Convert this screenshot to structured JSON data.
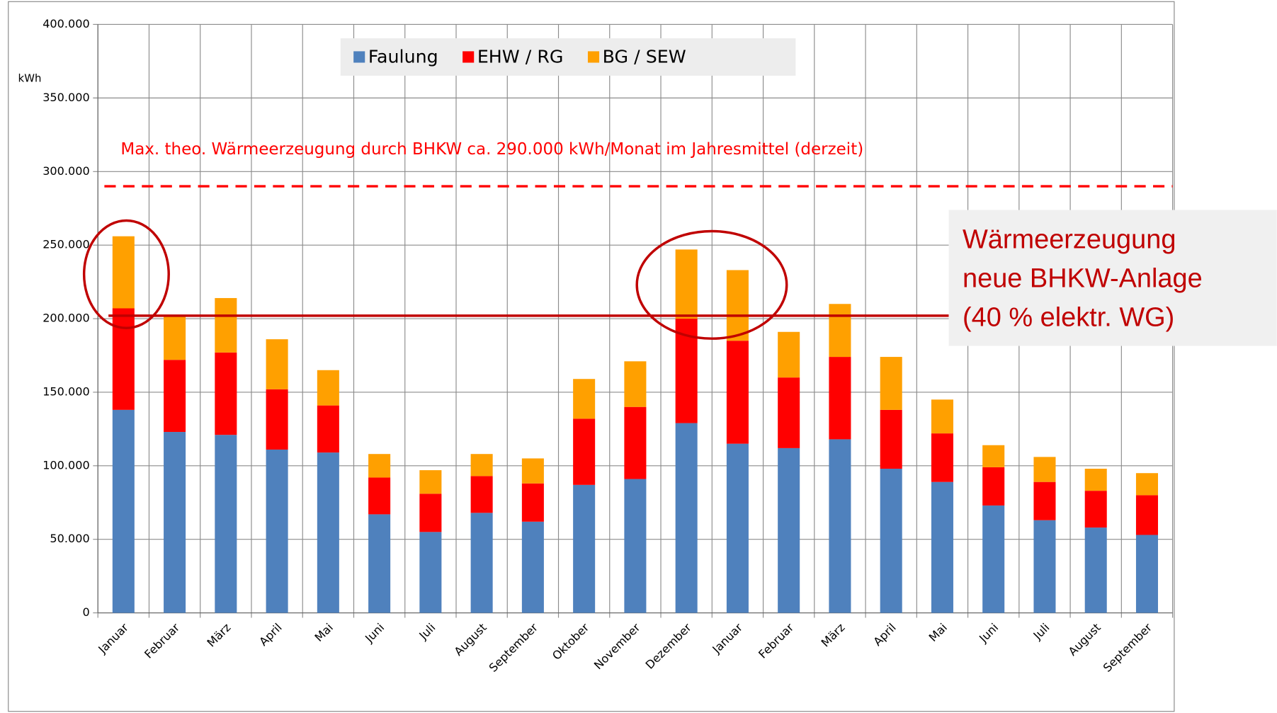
{
  "chart_data": {
    "type": "stacked_bar",
    "y_label": "kWh",
    "categories": [
      "Januar",
      "Februar",
      "März",
      "April",
      "Mai",
      "Juni",
      "Juli",
      "August",
      "September",
      "Oktober",
      "November",
      "Dezember",
      "Januar",
      "Februar",
      "März",
      "April",
      "Mai",
      "Juni",
      "Juli",
      "August",
      "September"
    ],
    "series": [
      {
        "name": "Faulung",
        "color": "#4f81bd",
        "values": [
          138000,
          123000,
          121000,
          111000,
          109000,
          67000,
          55000,
          68000,
          62000,
          87000,
          91000,
          129000,
          115000,
          112000,
          118000,
          98000,
          89000,
          73000,
          63000,
          58000,
          53000
        ]
      },
      {
        "name": "EHW / RG",
        "color": "#ff0000",
        "values": [
          69000,
          49000,
          56000,
          41000,
          32000,
          25000,
          26000,
          25000,
          26000,
          45000,
          49000,
          71000,
          70000,
          48000,
          56000,
          40000,
          33000,
          26000,
          26000,
          25000,
          27000
        ]
      },
      {
        "name": "BG / SEW",
        "color": "#ffa000",
        "values": [
          49000,
          30000,
          37000,
          34000,
          24000,
          16000,
          16000,
          15000,
          17000,
          27000,
          31000,
          47000,
          48000,
          31000,
          36000,
          36000,
          23000,
          15000,
          17000,
          15000,
          15000
        ]
      }
    ],
    "ylim": [
      0,
      400000
    ],
    "yticks": [
      0,
      {
        "value": 50000,
        "label": "50.000"
      },
      {
        "value": 100000,
        "label": "100.000"
      },
      {
        "value": 150000,
        "label": "150.000"
      },
      {
        "value": 200000,
        "label": "200.000"
      },
      {
        "value": 250000,
        "label": "250.000"
      },
      {
        "value": 300000,
        "label": "300.000"
      },
      {
        "value": 350000,
        "label": "350.000"
      },
      {
        "value": 400000,
        "label": "400.000"
      }
    ],
    "grid": true,
    "legend": "top",
    "reference_line": {
      "value": 290000,
      "color": "#ff0000",
      "label": "Max. theo. Wärmeerzeugung durch BHKW ca. 290.000 kWh/Monat im Jahresmittel (derzeit)"
    },
    "target_line": {
      "value": 202000,
      "color": "#c00000",
      "label": [
        "Wärmeerzeugung",
        "neue BHKW-Anlage",
        "(40 % elektr. WG)"
      ]
    }
  }
}
